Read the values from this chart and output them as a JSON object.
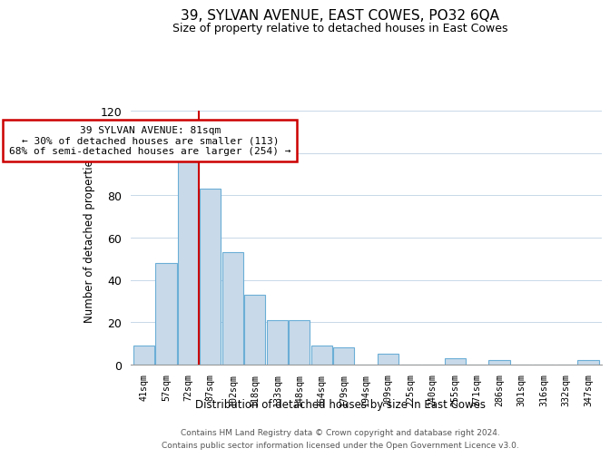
{
  "title": "39, SYLVAN AVENUE, EAST COWES, PO32 6QA",
  "subtitle": "Size of property relative to detached houses in East Cowes",
  "xlabel": "Distribution of detached houses by size in East Cowes",
  "ylabel": "Number of detached properties",
  "bar_labels": [
    "41sqm",
    "57sqm",
    "72sqm",
    "87sqm",
    "102sqm",
    "118sqm",
    "133sqm",
    "148sqm",
    "164sqm",
    "179sqm",
    "194sqm",
    "209sqm",
    "225sqm",
    "240sqm",
    "255sqm",
    "271sqm",
    "286sqm",
    "301sqm",
    "316sqm",
    "332sqm",
    "347sqm"
  ],
  "bar_values": [
    9,
    48,
    100,
    83,
    53,
    33,
    21,
    21,
    9,
    8,
    0,
    5,
    0,
    0,
    3,
    0,
    2,
    0,
    0,
    0,
    2
  ],
  "bar_color": "#c8daea",
  "bar_edge_color": "#6baed6",
  "vline_color": "#cc0000",
  "annotation_text": "39 SYLVAN AVENUE: 81sqm\n← 30% of detached houses are smaller (113)\n68% of semi-detached houses are larger (254) →",
  "annotation_box_color": "#ffffff",
  "annotation_box_edge_color": "#cc0000",
  "ylim": [
    0,
    120
  ],
  "footer_line1": "Contains HM Land Registry data © Crown copyright and database right 2024.",
  "footer_line2": "Contains public sector information licensed under the Open Government Licence v3.0.",
  "background_color": "#ffffff",
  "grid_color": "#c8d8e8"
}
